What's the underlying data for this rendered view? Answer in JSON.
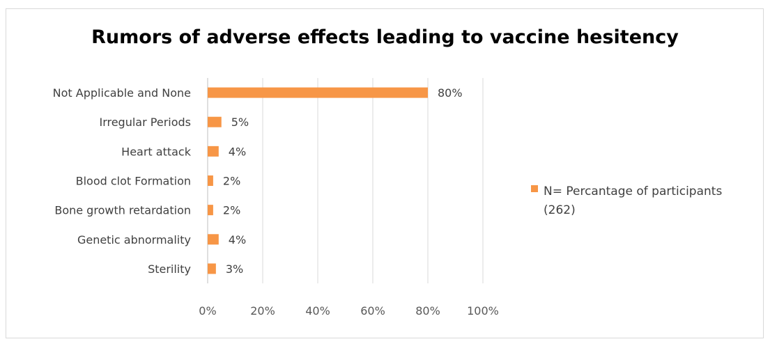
{
  "chart_data": {
    "type": "bar",
    "orientation": "horizontal",
    "title": "Rumors of adverse effects leading to vaccine hesitency",
    "categories": [
      "Not Applicable and None",
      "Irregular Periods",
      "Heart attack",
      "Blood clot Formation",
      "Bone growth retardation",
      "Genetic abnormality",
      "Sterility"
    ],
    "series": [
      {
        "name": "N= Percantage  of participants (262)",
        "values": [
          80,
          5,
          4,
          2,
          2,
          4,
          3
        ],
        "data_labels": [
          "80%",
          "5%",
          "4%",
          "2%",
          "2%",
          "4%",
          "3%"
        ],
        "color": "#f79646"
      }
    ],
    "x_ticks": [
      "0%",
      "20%",
      "40%",
      "60%",
      "80%",
      "100%"
    ],
    "xlim": [
      0,
      100
    ],
    "grid": "vertical",
    "legend_position": "right"
  }
}
